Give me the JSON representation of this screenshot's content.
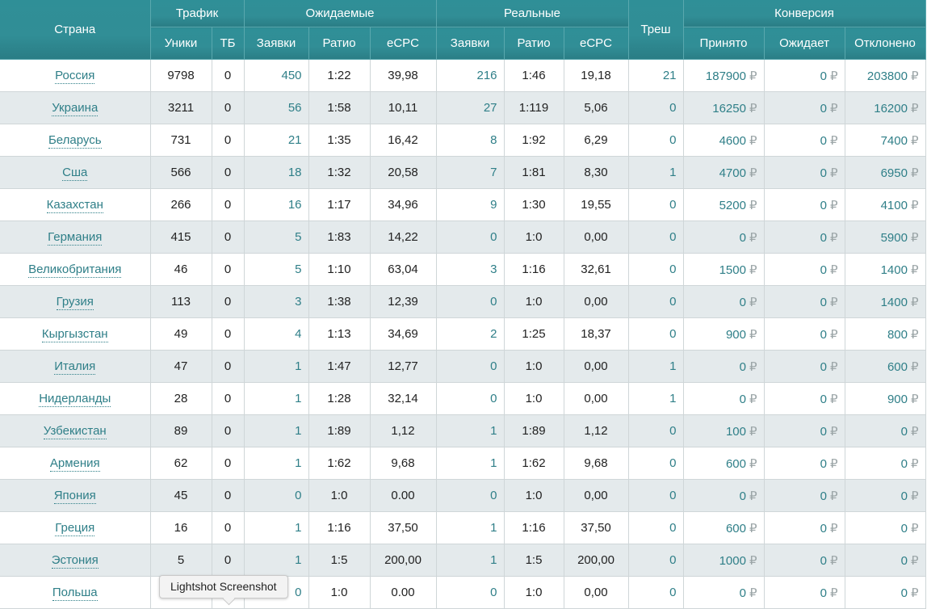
{
  "colors": {
    "header": "#318e96",
    "link": "#2f7f88",
    "row_alt": "#e4eaec"
  },
  "currency": "₽",
  "headers": {
    "country": "Страна",
    "traffic": "Трафик",
    "expected": "Ожидаемые",
    "real": "Реальные",
    "trash": "Треш",
    "conversion": "Конверсия",
    "uniques": "Уники",
    "tb": "ТБ",
    "exp_requests": "Заявки",
    "exp_ratio": "Ратио",
    "exp_ecpc": "eCPC",
    "real_requests": "Заявки",
    "real_ratio": "Ратио",
    "real_ecpc": "eCPC",
    "accepted": "Принято",
    "pending": "Ожидает",
    "rejected": "Отклонено"
  },
  "rows": [
    {
      "country": "Россия",
      "uniques": "9798",
      "tb": "0",
      "exp_req": "450",
      "exp_ratio": "1:22",
      "exp_ecpc": "39,98",
      "real_req": "216",
      "real_ratio": "1:46",
      "real_ecpc": "19,18",
      "trash": "21",
      "accepted": "187900",
      "pending": "0",
      "rejected": "203800"
    },
    {
      "country": "Украина",
      "uniques": "3211",
      "tb": "0",
      "exp_req": "56",
      "exp_ratio": "1:58",
      "exp_ecpc": "10,11",
      "real_req": "27",
      "real_ratio": "1:119",
      "real_ecpc": "5,06",
      "trash": "0",
      "accepted": "16250",
      "pending": "0",
      "rejected": "16200"
    },
    {
      "country": "Беларусь",
      "uniques": "731",
      "tb": "0",
      "exp_req": "21",
      "exp_ratio": "1:35",
      "exp_ecpc": "16,42",
      "real_req": "8",
      "real_ratio": "1:92",
      "real_ecpc": "6,29",
      "trash": "0",
      "accepted": "4600",
      "pending": "0",
      "rejected": "7400"
    },
    {
      "country": "Сша",
      "uniques": "566",
      "tb": "0",
      "exp_req": "18",
      "exp_ratio": "1:32",
      "exp_ecpc": "20,58",
      "real_req": "7",
      "real_ratio": "1:81",
      "real_ecpc": "8,30",
      "trash": "1",
      "accepted": "4700",
      "pending": "0",
      "rejected": "6950"
    },
    {
      "country": "Казахстан",
      "uniques": "266",
      "tb": "0",
      "exp_req": "16",
      "exp_ratio": "1:17",
      "exp_ecpc": "34,96",
      "real_req": "9",
      "real_ratio": "1:30",
      "real_ecpc": "19,55",
      "trash": "0",
      "accepted": "5200",
      "pending": "0",
      "rejected": "4100"
    },
    {
      "country": "Германия",
      "uniques": "415",
      "tb": "0",
      "exp_req": "5",
      "exp_ratio": "1:83",
      "exp_ecpc": "14,22",
      "real_req": "0",
      "real_ratio": "1:0",
      "real_ecpc": "0,00",
      "trash": "0",
      "accepted": "0",
      "pending": "0",
      "rejected": "5900"
    },
    {
      "country": "Великобритания",
      "uniques": "46",
      "tb": "0",
      "exp_req": "5",
      "exp_ratio": "1:10",
      "exp_ecpc": "63,04",
      "real_req": "3",
      "real_ratio": "1:16",
      "real_ecpc": "32,61",
      "trash": "0",
      "accepted": "1500",
      "pending": "0",
      "rejected": "1400"
    },
    {
      "country": "Грузия",
      "uniques": "113",
      "tb": "0",
      "exp_req": "3",
      "exp_ratio": "1:38",
      "exp_ecpc": "12,39",
      "real_req": "0",
      "real_ratio": "1:0",
      "real_ecpc": "0,00",
      "trash": "0",
      "accepted": "0",
      "pending": "0",
      "rejected": "1400"
    },
    {
      "country": "Кыргызстан",
      "uniques": "49",
      "tb": "0",
      "exp_req": "4",
      "exp_ratio": "1:13",
      "exp_ecpc": "34,69",
      "real_req": "2",
      "real_ratio": "1:25",
      "real_ecpc": "18,37",
      "trash": "0",
      "accepted": "900",
      "pending": "0",
      "rejected": "800"
    },
    {
      "country": "Италия",
      "uniques": "47",
      "tb": "0",
      "exp_req": "1",
      "exp_ratio": "1:47",
      "exp_ecpc": "12,77",
      "real_req": "0",
      "real_ratio": "1:0",
      "real_ecpc": "0,00",
      "trash": "1",
      "accepted": "0",
      "pending": "0",
      "rejected": "600"
    },
    {
      "country": "Нидерланды",
      "uniques": "28",
      "tb": "0",
      "exp_req": "1",
      "exp_ratio": "1:28",
      "exp_ecpc": "32,14",
      "real_req": "0",
      "real_ratio": "1:0",
      "real_ecpc": "0,00",
      "trash": "1",
      "accepted": "0",
      "pending": "0",
      "rejected": "900"
    },
    {
      "country": "Узбекистан",
      "uniques": "89",
      "tb": "0",
      "exp_req": "1",
      "exp_ratio": "1:89",
      "exp_ecpc": "1,12",
      "real_req": "1",
      "real_ratio": "1:89",
      "real_ecpc": "1,12",
      "trash": "0",
      "accepted": "100",
      "pending": "0",
      "rejected": "0"
    },
    {
      "country": "Армения",
      "uniques": "62",
      "tb": "0",
      "exp_req": "1",
      "exp_ratio": "1:62",
      "exp_ecpc": "9,68",
      "real_req": "1",
      "real_ratio": "1:62",
      "real_ecpc": "9,68",
      "trash": "0",
      "accepted": "600",
      "pending": "0",
      "rejected": "0"
    },
    {
      "country": "Япония",
      "uniques": "45",
      "tb": "0",
      "exp_req": "0",
      "exp_ratio": "1:0",
      "exp_ecpc": "0.00",
      "real_req": "0",
      "real_ratio": "1:0",
      "real_ecpc": "0,00",
      "trash": "0",
      "accepted": "0",
      "pending": "0",
      "rejected": "0"
    },
    {
      "country": "Греция",
      "uniques": "16",
      "tb": "0",
      "exp_req": "1",
      "exp_ratio": "1:16",
      "exp_ecpc": "37,50",
      "real_req": "1",
      "real_ratio": "1:16",
      "real_ecpc": "37,50",
      "trash": "0",
      "accepted": "600",
      "pending": "0",
      "rejected": "0"
    },
    {
      "country": "Эстония",
      "uniques": "5",
      "tb": "0",
      "exp_req": "1",
      "exp_ratio": "1:5",
      "exp_ecpc": "200,00",
      "real_req": "1",
      "real_ratio": "1:5",
      "real_ecpc": "200,00",
      "trash": "0",
      "accepted": "1000",
      "pending": "0",
      "rejected": "0"
    },
    {
      "country": "Польша",
      "uniques": "",
      "tb": "",
      "exp_req": "0",
      "exp_ratio": "1:0",
      "exp_ecpc": "0.00",
      "real_req": "0",
      "real_ratio": "1:0",
      "real_ecpc": "0,00",
      "trash": "0",
      "accepted": "0",
      "pending": "0",
      "rejected": "0"
    }
  ],
  "tooltip": {
    "text": "Lightshot Screenshot"
  }
}
